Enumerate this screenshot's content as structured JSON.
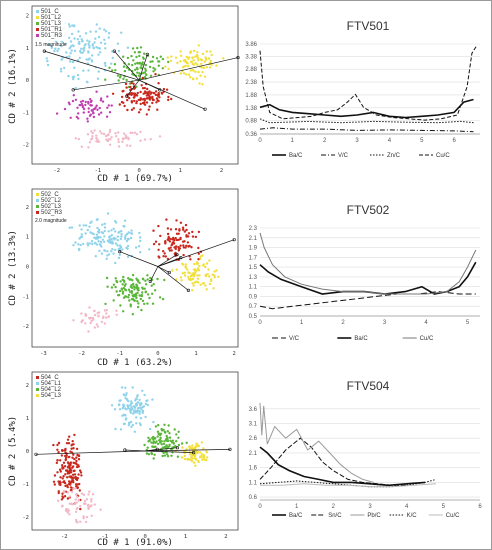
{
  "colors": {
    "cyan": "#8fd3ea",
    "yellow": "#f2df3a",
    "red": "#c8281e",
    "green": "#5ab63a",
    "magenta": "#c040b0",
    "pink": "#f2b8c8",
    "orange": "#e8a23c",
    "line": "#111111"
  },
  "scatter": [
    {
      "panel": "scatter-501",
      "legend": [
        {
          "label": "501_C",
          "color": "#8fd3ea"
        },
        {
          "label": "501_L2",
          "color": "#f2df3a"
        },
        {
          "label": "501_L3",
          "color": "#5ab63a"
        },
        {
          "label": "501_R1",
          "color": "#c8281e"
        },
        {
          "label": "501_R3",
          "color": "#c040b0"
        }
      ],
      "magnitude": "1.5 magnitude",
      "xlabel": "CD # 1 (69.7%)",
      "ylabel": "CD # 2 (16.1%)",
      "xticks": [
        "-2",
        "-1",
        "0",
        "1",
        "2"
      ],
      "yticks": [
        "2",
        "1",
        "0",
        "-1",
        "-2"
      ],
      "xlim": [
        -2.6,
        2.4
      ],
      "ylim": [
        -2.6,
        2.3
      ]
    },
    {
      "panel": "scatter-502",
      "legend": [
        {
          "label": "502_C",
          "color": "#f2df3a"
        },
        {
          "label": "502_L2",
          "color": "#8fd3ea"
        },
        {
          "label": "502_L3",
          "color": "#5ab63a"
        },
        {
          "label": "502_R3",
          "color": "#c8281e"
        }
      ],
      "magnitude": "2.0 magnitude",
      "xlabel": "CD # 1 (63.2%)",
      "ylabel": "CD # 2 (13.3%)",
      "xticks": [
        "-3",
        "-2",
        "-1",
        "0",
        "1",
        "2"
      ],
      "yticks": [
        "2",
        "1",
        "0",
        "-1",
        "-2"
      ],
      "xlim": [
        -3.3,
        2.1
      ],
      "ylim": [
        -2.7,
        2.6
      ]
    },
    {
      "panel": "scatter-504",
      "legend": [
        {
          "label": "504_C",
          "color": "#c8281e"
        },
        {
          "label": "504_L1",
          "color": "#8fd3ea"
        },
        {
          "label": "504_L2",
          "color": "#5ab63a"
        },
        {
          "label": "504_L3",
          "color": "#f2df3a"
        }
      ],
      "magnitude": "",
      "xlabel": "CD # 1 (91.0%)",
      "ylabel": "CD # 2 (5.4%)",
      "xticks": [
        "-2",
        "-1",
        "0",
        "1",
        "2"
      ],
      "yticks": [
        "2",
        "1",
        "0",
        "-1",
        "-2"
      ],
      "xlim": [
        -2.8,
        2.3
      ],
      "ylim": [
        -2.4,
        2.4
      ]
    }
  ],
  "chart_data": [
    {
      "type": "line",
      "title": "FTV501",
      "xlim": [
        0,
        6.8
      ],
      "ylim": [
        0.36,
        3.86
      ],
      "xticks": [
        0,
        1,
        2,
        3,
        4,
        5,
        6
      ],
      "yticks": [
        3.86,
        3.38,
        2.88,
        2.38,
        1.88,
        1.38,
        0.88,
        0.36
      ],
      "ytick_labels": [
        "3.86",
        "3.38",
        "2.88",
        "2.38",
        "1.88",
        "1.38",
        "0.88",
        "0.36"
      ],
      "series": [
        {
          "name": "Ba/C",
          "dash": "",
          "width": 1.6,
          "x": [
            0,
            0.3,
            0.6,
            1,
            1.5,
            2,
            2.5,
            3,
            3.5,
            4,
            4.5,
            5,
            5.5,
            6,
            6.3,
            6.6
          ],
          "y": [
            1.4,
            1.5,
            1.3,
            1.2,
            1.15,
            1.1,
            1.05,
            1.1,
            1.2,
            1.05,
            1.0,
            1.05,
            1.1,
            1.2,
            1.6,
            1.7
          ]
        },
        {
          "name": "V/C",
          "dash": "5,2,1,2",
          "width": 1,
          "x": [
            0,
            0.4,
            1,
            2,
            3,
            4,
            5,
            6,
            6.6
          ],
          "y": [
            0.55,
            0.6,
            0.55,
            0.55,
            0.5,
            0.52,
            0.5,
            0.48,
            0.45
          ]
        },
        {
          "name": "Zn/C",
          "dash": "1.5,1.5",
          "width": 1,
          "x": [
            0,
            0.3,
            0.8,
            1.5,
            2.5,
            3.5,
            4.5,
            5.5,
            6.2,
            6.6
          ],
          "y": [
            0.95,
            0.8,
            0.82,
            0.85,
            0.8,
            0.85,
            0.82,
            0.8,
            0.85,
            0.8
          ]
        },
        {
          "name": "Cu/C",
          "dash": "4,2",
          "width": 1,
          "x": [
            0,
            0.1,
            0.3,
            0.7,
            1.2,
            1.6,
            2.0,
            2.4,
            2.7,
            2.95,
            3.2,
            3.6,
            4.1,
            4.6,
            5.1,
            5.6,
            6.1,
            6.4,
            6.55,
            6.7
          ],
          "y": [
            3.6,
            2.2,
            1.2,
            0.95,
            1.0,
            1.05,
            1.2,
            1.3,
            1.6,
            1.9,
            1.4,
            1.1,
            1.0,
            0.95,
            0.9,
            0.95,
            1.1,
            2.2,
            3.5,
            3.8
          ]
        }
      ]
    },
    {
      "type": "line",
      "title": "FTV502",
      "xlim": [
        0,
        5.3
      ],
      "ylim": [
        0.5,
        2.3
      ],
      "xticks": [
        0,
        1,
        2,
        3,
        4,
        5
      ],
      "yticks": [
        2.3,
        2.1,
        1.9,
        1.7,
        1.5,
        1.3,
        1.1,
        0.9,
        0.7,
        0.5
      ],
      "ytick_labels": [
        "2.3",
        "2.1",
        "1.9",
        "1.7",
        "1.5",
        "1.3",
        "1.1",
        "0.9",
        "0.7",
        "0.5"
      ],
      "series": [
        {
          "name": "V/C",
          "dash": "6,3",
          "width": 1,
          "x": [
            0,
            0.3,
            0.8,
            1.3,
            1.8,
            2.3,
            2.8,
            3.3,
            3.8,
            4.3,
            4.8,
            5.2
          ],
          "y": [
            0.7,
            0.65,
            0.7,
            0.75,
            0.8,
            0.85,
            0.9,
            0.95,
            0.95,
            1.0,
            0.95,
            0.95
          ]
        },
        {
          "name": "Ba/C",
          "dash": "",
          "width": 1.6,
          "x": [
            0,
            0.2,
            0.5,
            1,
            1.5,
            2,
            2.5,
            3,
            3.5,
            3.9,
            4.2,
            4.5,
            4.8,
            5.0,
            5.2
          ],
          "y": [
            1.55,
            1.4,
            1.25,
            1.1,
            0.95,
            1.0,
            1.0,
            0.95,
            1.0,
            1.1,
            0.95,
            1.0,
            1.1,
            1.3,
            1.6
          ]
        },
        {
          "name": "Cu/C",
          "dash": "",
          "width": 1,
          "color": "#777777",
          "x": [
            0,
            0.1,
            0.3,
            0.6,
            1,
            1.5,
            2,
            2.5,
            3,
            3.5,
            4,
            4.5,
            4.8,
            5.0,
            5.2
          ],
          "y": [
            2.2,
            1.9,
            1.55,
            1.3,
            1.15,
            1.05,
            1.0,
            1.0,
            0.95,
            0.95,
            0.95,
            1.0,
            1.2,
            1.5,
            1.85
          ]
        }
      ]
    },
    {
      "type": "line",
      "title": "FTV504",
      "xlim": [
        0,
        6
      ],
      "ylim": [
        0.5,
        3.9
      ],
      "xticks": [
        0,
        1,
        2,
        3,
        4,
        5,
        6
      ],
      "yticks": [
        3.6,
        3.1,
        2.6,
        2.1,
        1.6,
        1.1,
        0.6
      ],
      "ytick_labels": [
        "3.6",
        "3.1",
        "2.6",
        "2.1",
        "1.6",
        "1.1",
        "0.6"
      ],
      "series": [
        {
          "name": "Ba/C",
          "dash": "",
          "width": 1.6,
          "x": [
            0,
            0.2,
            0.5,
            0.8,
            1.2,
            1.6,
            2.0,
            2.5,
            3.0,
            3.5,
            4.0,
            4.5
          ],
          "y": [
            2.3,
            2.1,
            1.7,
            1.5,
            1.3,
            1.2,
            1.1,
            1.1,
            1.05,
            1.0,
            1.05,
            1.1
          ]
        },
        {
          "name": "Sn/C",
          "dash": "5,2",
          "width": 1,
          "x": [
            0,
            0.3,
            0.7,
            1.1,
            1.4,
            1.7,
            2.0,
            2.4,
            2.8,
            3.2,
            3.6,
            4.0
          ],
          "y": [
            1.2,
            1.6,
            2.2,
            2.6,
            2.3,
            1.8,
            1.5,
            1.2,
            1.1,
            1.05,
            1.0,
            1.0
          ]
        },
        {
          "name": "Pb/C",
          "dash": "",
          "width": 1,
          "color": "#9a9a9a",
          "x": [
            0,
            0.05,
            0.1,
            0.2,
            0.4,
            0.7,
            1.0,
            1.3,
            1.6,
            1.9,
            2.2,
            2.5,
            2.8,
            3.1
          ],
          "y": [
            3.8,
            2.7,
            3.7,
            2.4,
            3.0,
            2.6,
            2.9,
            2.2,
            2.5,
            2.1,
            1.7,
            1.4,
            1.2,
            1.1
          ]
        },
        {
          "name": "K/C",
          "dash": "1.5,1.5",
          "width": 1,
          "x": [
            0,
            0.5,
            1.0,
            1.5,
            2.0,
            2.5,
            3.0,
            3.5,
            4.0,
            4.5,
            4.8
          ],
          "y": [
            1.05,
            1.1,
            1.15,
            1.1,
            1.05,
            1.0,
            0.95,
            0.95,
            1.0,
            1.1,
            1.2
          ]
        },
        {
          "name": "Cu/C",
          "dash": "",
          "width": 1,
          "color": "#bbbbbb",
          "x": [
            0,
            0.6,
            1.2,
            1.8,
            2.4,
            3.0,
            3.6,
            4.2,
            4.8
          ],
          "y": [
            1.0,
            1.0,
            1.05,
            1.0,
            1.0,
            0.95,
            0.95,
            1.0,
            1.05
          ]
        }
      ]
    }
  ]
}
